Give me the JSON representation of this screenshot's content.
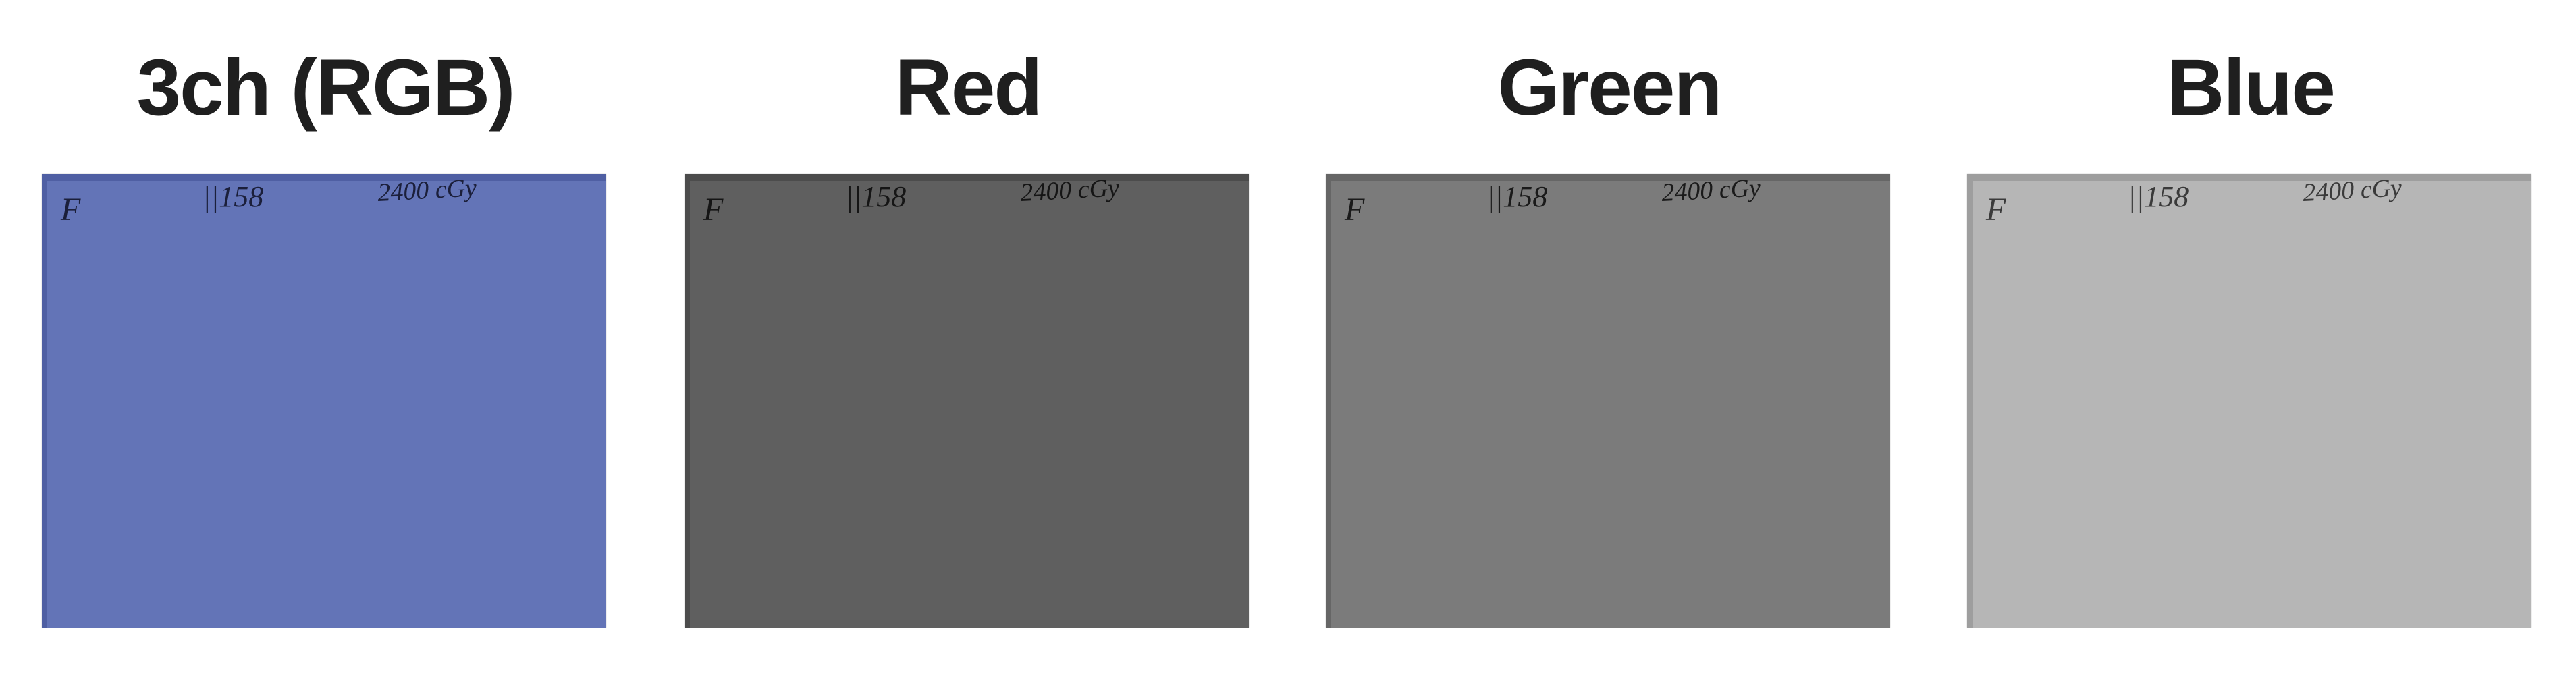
{
  "panels": [
    {
      "title": "3ch (RGB)",
      "film_color": "#6374b7",
      "edge_color": "#4f5fa3",
      "ink_color": "#1b1f3a",
      "marks": {
        "corner": "F",
        "batch": "||158",
        "dose": "2400 cGy"
      }
    },
    {
      "title": "Red",
      "film_color": "#5f5f5f",
      "edge_color": "#4c4c4c",
      "ink_color": "#151515",
      "marks": {
        "corner": "F",
        "batch": "||158",
        "dose": "2400 cGy"
      }
    },
    {
      "title": "Green",
      "film_color": "#7b7b7b",
      "edge_color": "#666666",
      "ink_color": "#1a1a1a",
      "marks": {
        "corner": "F",
        "batch": "||158",
        "dose": "2400 cGy"
      }
    },
    {
      "title": "Blue",
      "film_color": "#b6b6b6",
      "edge_color": "#9e9e9e",
      "ink_color": "#3a3a3a",
      "marks": {
        "corner": "F",
        "batch": "||158",
        "dose": "2400 cGy"
      }
    }
  ]
}
